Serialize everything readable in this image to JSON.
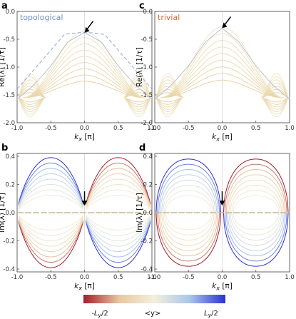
{
  "chart_data": [
    {
      "panel": "a",
      "type": "line",
      "annotation": "topological",
      "annotation_color": "#6f8fc4",
      "xlabel": "k_x [π]",
      "ylabel": "Re(λ) [1/τ]",
      "xlim": [
        -1.0,
        1.0
      ],
      "ylim": [
        -2.0,
        0.0
      ],
      "xticks": [
        -1.0,
        -0.5,
        0.0,
        0.5,
        1.0
      ],
      "yticks": [
        -2.0,
        -1.5,
        -1.0,
        -0.5,
        0.0
      ],
      "xtick_labels": [
        "-1.0",
        "-0.5",
        "0.0",
        "0.5",
        "1.0"
      ],
      "ytick_labels": [
        "-2.0",
        "-1.5",
        "-1.0",
        "-0.5",
        "0.0"
      ],
      "arrow_target": [
        0.0,
        -0.38
      ],
      "band": {
        "x": [
          -1.0,
          -0.75,
          -0.5,
          -0.25,
          0.0,
          0.25,
          0.5,
          0.75,
          1.0
        ],
        "y": [
          -1.58,
          -1.32,
          -0.98,
          -0.55,
          -0.38,
          -0.55,
          -0.98,
          -1.32,
          -1.58
        ]
      },
      "edge_state_color": "#8aa6d8"
    },
    {
      "panel": "c",
      "type": "line",
      "annotation": "trivial",
      "annotation_color": "#d26a3c",
      "xlabel": "k_x [π]",
      "ylabel": "Re(λ) [1/τ]",
      "xlim": [
        -1.0,
        1.0
      ],
      "ylim": [
        -2.0,
        0.0
      ],
      "xticks": [
        -1.0,
        -0.5,
        0.0,
        0.5,
        1.0
      ],
      "yticks": [
        -2.0,
        -1.5,
        -1.0,
        -0.5,
        0.0
      ],
      "xtick_labels": [
        "-1.0",
        "-0.5",
        "0.0",
        "0.5",
        "1.0"
      ],
      "ytick_labels": [
        "-2.0",
        "-1.5",
        "-1.0",
        "-0.5",
        "0.0"
      ],
      "arrow_target": [
        0.0,
        -0.3
      ],
      "band": {
        "x": [
          -1.0,
          -0.75,
          -0.5,
          -0.25,
          0.0,
          0.25,
          0.5,
          0.75,
          1.0
        ],
        "y": [
          -1.58,
          -1.32,
          -0.98,
          -0.55,
          -0.3,
          -0.55,
          -0.98,
          -1.32,
          -1.58
        ]
      }
    },
    {
      "panel": "b",
      "type": "line",
      "xlabel": "k_x [π]",
      "ylabel": "Im(λ) [1/τ]",
      "xlim": [
        -1.0,
        1.0
      ],
      "ylim": [
        -0.42,
        0.42
      ],
      "xticks": [
        -1.0,
        -0.5,
        0.0,
        0.5,
        1.0
      ],
      "yticks": [
        -0.4,
        -0.2,
        0.0,
        0.2,
        0.4
      ],
      "xtick_labels": [
        "-1.0",
        "-0.5",
        "0.0",
        "0.5",
        "1.0"
      ],
      "ytick_labels": [
        "-0.4",
        "-0.2",
        "0.0",
        "0.2",
        "0.4"
      ],
      "arrow_target": [
        0.0,
        0.05
      ],
      "outer_amplitude": 0.39,
      "edge_states_cross_at_zero": true
    },
    {
      "panel": "d",
      "type": "line",
      "xlabel": "k_x [π]",
      "ylabel": "Im(λ) [1/τ]",
      "xlim": [
        -1.0,
        1.0
      ],
      "ylim": [
        -0.42,
        0.42
      ],
      "xticks": [
        -1.0,
        -0.5,
        0.0,
        0.5,
        1.0
      ],
      "yticks": [
        -0.4,
        -0.2,
        0.0,
        0.2,
        0.4
      ],
      "xtick_labels": [
        "-1.0",
        "-0.5",
        "0.0",
        "0.5",
        "1.0"
      ],
      "ytick_labels": [
        "-0.4",
        "-0.2",
        "0.0",
        "0.2",
        "0.4"
      ],
      "arrow_target": [
        0.0,
        0.05
      ],
      "outer_amplitude": 0.38,
      "edge_states_cross_at_zero": false
    }
  ],
  "colorbar": {
    "label_left": "-L_y/2",
    "label_mid": "<y>",
    "label_right": "L_y/2",
    "colors": [
      "#a61c2a",
      "#e8c7a0",
      "#f4efdc",
      "#a9c6ea",
      "#2a30d6"
    ]
  }
}
